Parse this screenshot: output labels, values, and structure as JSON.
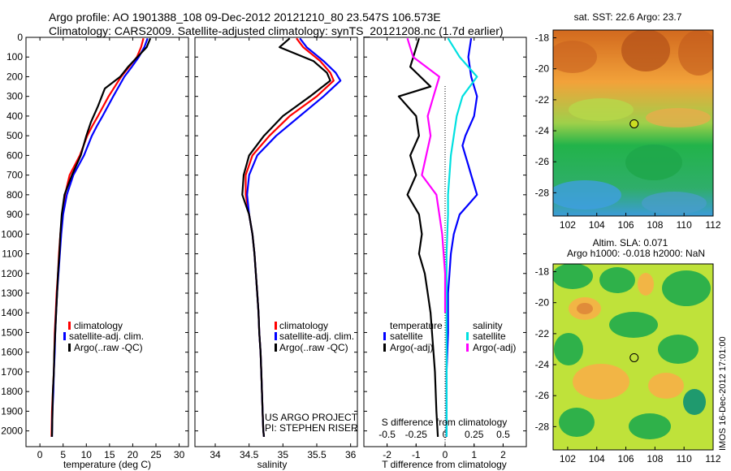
{
  "header": {
    "line1": "Argo profile: AO 1901388_108 09-Dec-2012 20121210_80 23.547S 106.573E",
    "line2": "Climatology: CARS2009. Satellite-adjusted climatology: synTS_20121208.nc (1.7d earlier)"
  },
  "colors": {
    "climatology": "#ff0000",
    "satellite": "#0000ff",
    "argo": "#000000",
    "sal_satellite": "#00e0e0",
    "sal_argo": "#ff00ff"
  },
  "chart_data": [
    {
      "type": "line",
      "panel": "temperature",
      "xlabel": "temperature (deg C)",
      "ylabel": "",
      "xlim": [
        -3,
        32
      ],
      "ylim": [
        2080,
        0
      ],
      "xticks": [
        0,
        5,
        10,
        15,
        20,
        25,
        30
      ],
      "yticks": [
        0,
        100,
        200,
        300,
        400,
        500,
        600,
        700,
        800,
        900,
        1000,
        1100,
        1200,
        1300,
        1400,
        1500,
        1600,
        1700,
        1800,
        1900,
        2000
      ],
      "legend": [
        "climatology",
        "satellite-adj. clim.",
        "Argo(..raw -QC)"
      ],
      "legend_position": "lower-center",
      "series": [
        {
          "name": "climatology",
          "color": "#ff0000",
          "x": [
            22.3,
            21.8,
            20.9,
            19.2,
            17.5,
            14.8,
            12.5,
            11.3,
            10.2,
            8.6,
            6.4,
            5.4,
            4.8,
            4.4,
            4.1,
            3.9,
            3.6,
            3.4,
            3.2,
            3.1,
            3.0,
            2.8,
            2.6,
            2.5
          ],
          "y": [
            5,
            50,
            100,
            150,
            200,
            300,
            400,
            450,
            500,
            600,
            700,
            800,
            900,
            1000,
            1100,
            1200,
            1300,
            1400,
            1500,
            1600,
            1700,
            1800,
            1900,
            2030
          ]
        },
        {
          "name": "satellite-adj. clim.",
          "color": "#0000ff",
          "x": [
            23.2,
            22.5,
            21.3,
            19.8,
            18.2,
            15.8,
            13.5,
            12.3,
            11.2,
            9.5,
            7.2,
            5.8,
            5.0,
            4.6,
            4.3,
            4.0,
            3.7,
            3.5,
            3.3,
            3.2,
            3.0,
            2.9,
            2.7,
            2.6
          ],
          "y": [
            5,
            50,
            100,
            150,
            200,
            300,
            400,
            450,
            500,
            600,
            700,
            800,
            900,
            1000,
            1100,
            1200,
            1300,
            1400,
            1500,
            1600,
            1700,
            1800,
            1900,
            2030
          ]
        },
        {
          "name": "Argo(..raw -QC)",
          "color": "#000000",
          "x": [
            23.8,
            23.0,
            21.0,
            19.0,
            17.3,
            14.0,
            12.5,
            11.0,
            10.0,
            8.8,
            6.9,
            5.3,
            4.7,
            4.4,
            4.2,
            3.9,
            3.7,
            3.5,
            3.3,
            3.1,
            3.0,
            2.8,
            2.7,
            2.6
          ],
          "y": [
            5,
            50,
            100,
            150,
            200,
            260,
            350,
            430,
            500,
            600,
            700,
            800,
            900,
            1000,
            1100,
            1200,
            1300,
            1400,
            1500,
            1600,
            1700,
            1800,
            1900,
            2030
          ]
        }
      ]
    },
    {
      "type": "line",
      "panel": "salinity",
      "xlabel": "salinity",
      "ylabel": "",
      "xlim": [
        33.7,
        36.1
      ],
      "ylim": [
        2080,
        0
      ],
      "xticks": [
        34,
        34.5,
        35,
        35.5,
        36
      ],
      "legend": [
        "climatology",
        "satellite-adj. clim.",
        "Argo(..raw -QC)"
      ],
      "legend_position": "lower-center",
      "annotation": [
        "US ARGO PROJECT",
        "PI: STEPHEN RISER"
      ],
      "series": [
        {
          "name": "climatology",
          "color": "#ff0000",
          "x": [
            35.2,
            35.3,
            35.55,
            35.7,
            35.75,
            35.5,
            35.1,
            34.8,
            34.55,
            34.45,
            34.45,
            34.5,
            34.55,
            34.58,
            34.6,
            34.62,
            34.64,
            34.65,
            34.67,
            34.68,
            34.69,
            34.7,
            34.71,
            34.72
          ],
          "y": [
            5,
            50,
            120,
            180,
            220,
            300,
            400,
            500,
            600,
            700,
            800,
            900,
            1000,
            1100,
            1200,
            1300,
            1400,
            1500,
            1600,
            1700,
            1800,
            1900,
            2000,
            2030
          ]
        },
        {
          "name": "satellite-adj. clim.",
          "color": "#0000ff",
          "x": [
            35.25,
            35.35,
            35.6,
            35.78,
            35.85,
            35.6,
            35.25,
            34.9,
            34.62,
            34.5,
            34.47,
            34.5,
            34.55,
            34.58,
            34.6,
            34.62,
            34.64,
            34.65,
            34.67,
            34.68,
            34.69,
            34.7,
            34.71,
            34.72
          ],
          "y": [
            5,
            50,
            120,
            180,
            220,
            300,
            400,
            500,
            600,
            700,
            800,
            900,
            1000,
            1100,
            1200,
            1300,
            1400,
            1500,
            1600,
            1700,
            1800,
            1900,
            2000,
            2030
          ]
        },
        {
          "name": "Argo(..raw -QC)",
          "color": "#000000",
          "x": [
            35.1,
            34.95,
            35.45,
            35.65,
            35.7,
            35.4,
            35.0,
            34.72,
            34.5,
            34.42,
            34.4,
            34.5,
            34.55,
            34.58,
            34.6,
            34.62,
            34.64,
            34.65,
            34.67,
            34.68,
            34.69,
            34.7,
            34.71,
            34.72
          ],
          "y": [
            5,
            50,
            120,
            180,
            220,
            300,
            400,
            500,
            600,
            700,
            800,
            900,
            1000,
            1100,
            1200,
            1300,
            1400,
            1500,
            1600,
            1700,
            1800,
            1900,
            2000,
            2030
          ]
        }
      ]
    },
    {
      "type": "line",
      "panel": "difference",
      "xlabel": "T difference from climatology",
      "top_axis_label": "S difference from climatology",
      "xlim": [
        -2.8,
        2.8
      ],
      "ylim": [
        2080,
        0
      ],
      "xticks": [
        -2,
        -1,
        0,
        1,
        2
      ],
      "top_ticks": [
        -0.5,
        -0.25,
        0,
        0.25,
        0.5
      ],
      "top_tick_labels": [
        "-0.5",
        "-0.25",
        "0",
        "0.25",
        "0.5"
      ],
      "legend_temperature_title": "temperature",
      "legend_salinity_title": "salinity",
      "legend_temperature": [
        "satellite",
        "Argo(-adj)"
      ],
      "legend_salinity": [
        "satellite",
        "Argo(-adj)"
      ],
      "series": [
        {
          "name": "satellite",
          "color": "#0000ff",
          "x": [
            0.9,
            0.8,
            0.9,
            1.1,
            1.0,
            0.7,
            0.6,
            0.7,
            0.8,
            0.9,
            1.1,
            0.8,
            0.5,
            0.3,
            0.2,
            0.15,
            0.1,
            0.1,
            0.05,
            0.05,
            0.05,
            0.05
          ],
          "y": [
            5,
            100,
            200,
            300,
            400,
            500,
            550,
            600,
            650,
            700,
            800,
            850,
            900,
            1000,
            1100,
            1200,
            1300,
            1500,
            1700,
            1900,
            2000,
            2030
          ]
        },
        {
          "name": "Argo(-adj)",
          "color": "#000000",
          "x": [
            -0.9,
            -1.2,
            -0.5,
            -1.6,
            -1.0,
            -0.9,
            -1.2,
            -1.0,
            -1.3,
            -0.9,
            -0.8,
            -0.9,
            -0.7,
            -0.6,
            -0.5,
            -0.45,
            -0.4,
            -0.35,
            -0.3,
            -0.25
          ],
          "y": [
            5,
            150,
            250,
            300,
            400,
            500,
            600,
            700,
            800,
            900,
            1000,
            1100,
            1200,
            1300,
            1400,
            1500,
            1600,
            1700,
            1900,
            2030
          ]
        },
        {
          "name": "sal satellite",
          "color": "#00e0e0",
          "x": [
            0.1,
            0.5,
            1.1,
            0.6,
            0.4,
            0.3,
            0.2,
            0.15,
            0.1,
            0.1,
            0.05,
            0.05,
            0.05,
            0.05
          ],
          "y": [
            5,
            100,
            200,
            300,
            400,
            500,
            600,
            700,
            800,
            900,
            1100,
            1300,
            1600,
            2030
          ]
        },
        {
          "name": "sal Argo(-adj)",
          "color": "#ff00ff",
          "x": [
            -1.3,
            -1.1,
            -0.2,
            -0.4,
            -0.6,
            -0.5,
            -0.8,
            -0.3,
            -0.2,
            -0.1,
            0.0,
            0.0
          ],
          "y": [
            5,
            100,
            200,
            300,
            400,
            500,
            700,
            800,
            900,
            1000,
            1200,
            1400
          ]
        }
      ]
    },
    {
      "type": "heatmap",
      "panel": "sst-map",
      "title": "sat. SST: 22.6  Argo: 23.7",
      "xlim": [
        101,
        112
      ],
      "ylim": [
        -29.5,
        -17.5
      ],
      "xticks": [
        102,
        104,
        106,
        108,
        110,
        112
      ],
      "yticks": [
        -18,
        -20,
        -22,
        -24,
        -26,
        -28
      ],
      "marker": {
        "lon": 106.57,
        "lat": -23.55
      }
    },
    {
      "type": "heatmap",
      "panel": "sla-map",
      "title": "Altim. SLA: 0.071",
      "subtitle": "Argo h1000: -0.018 h2000: NaN",
      "xlim": [
        101,
        112
      ],
      "ylim": [
        -29.5,
        -17.5
      ],
      "xticks": [
        102,
        104,
        106,
        108,
        110,
        112
      ],
      "yticks": [
        -18,
        -20,
        -22,
        -24,
        -26,
        -28
      ],
      "marker": {
        "lon": 106.57,
        "lat": -23.55
      }
    }
  ],
  "footer": {
    "vertical_stamp": "IMOS 16-Dec-2012 17:01:00"
  }
}
